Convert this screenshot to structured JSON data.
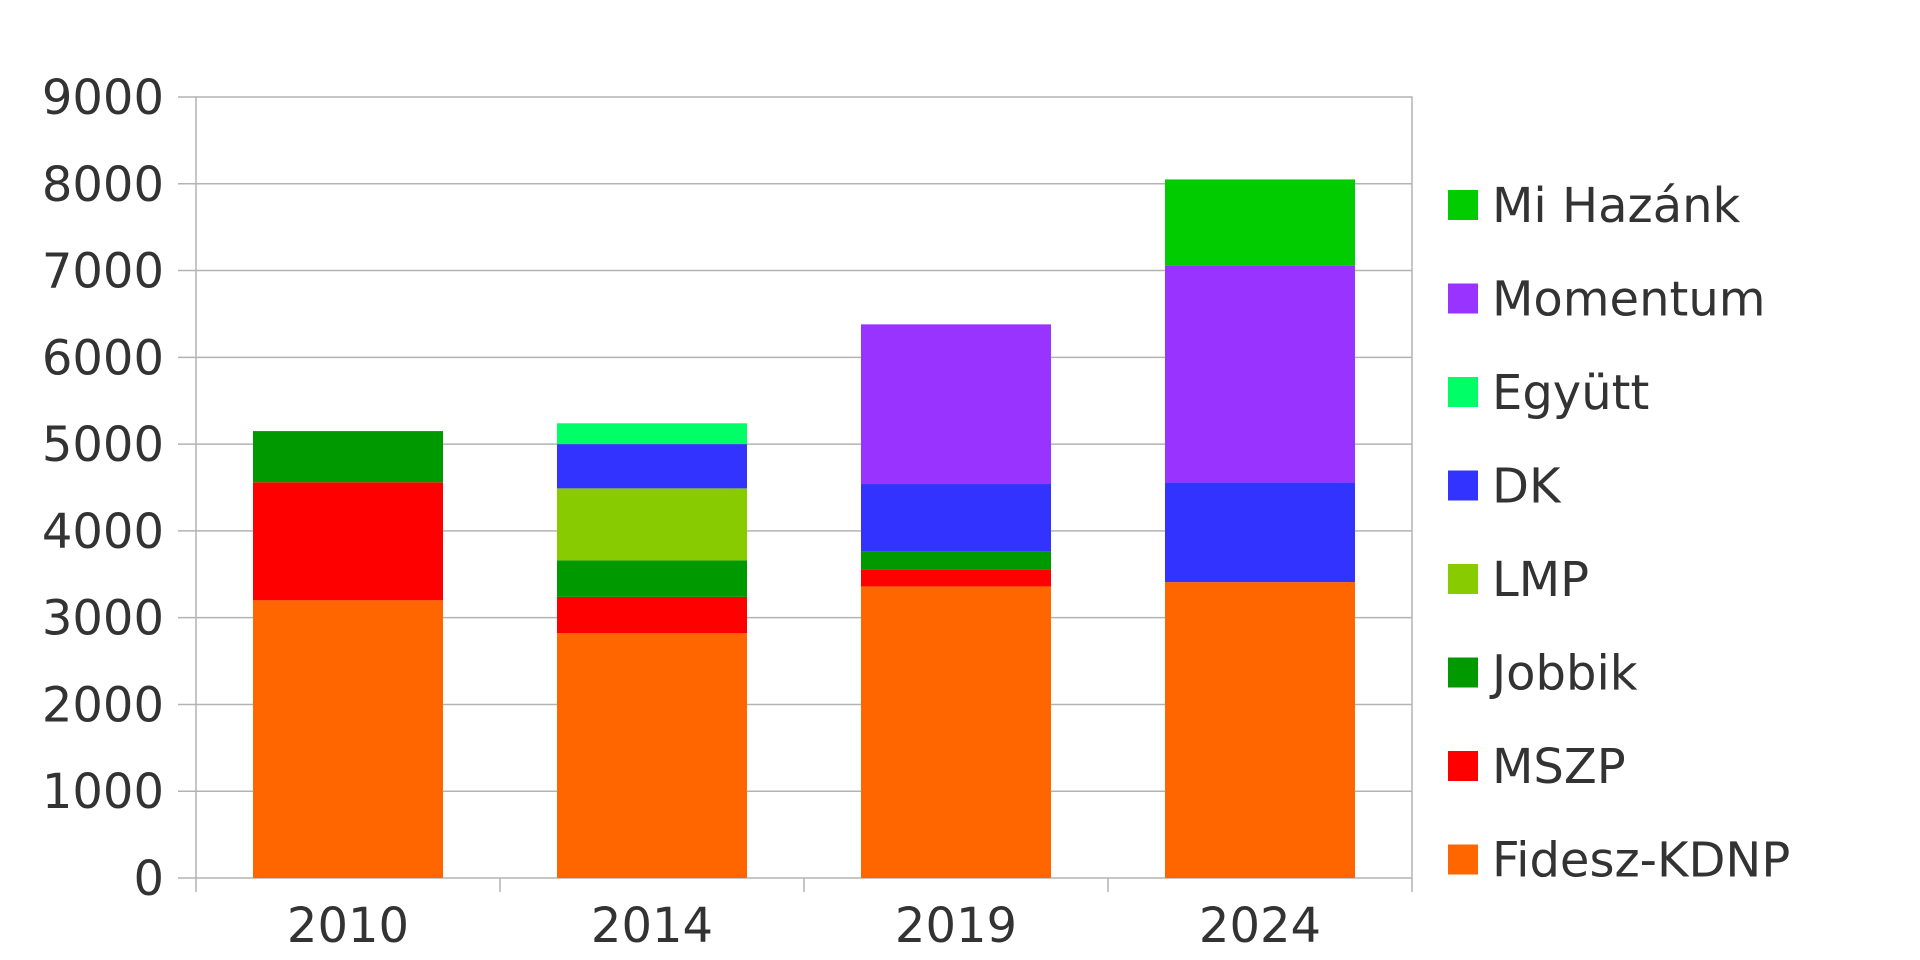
{
  "chart_data": {
    "type": "bar",
    "stacked": true,
    "categories": [
      "2010",
      "2014",
      "2019",
      "2024"
    ],
    "series": [
      {
        "name": "Fidesz-KDNP",
        "color": "#ff6600",
        "values": [
          3200,
          2820,
          3360,
          3410
        ]
      },
      {
        "name": "MSZP",
        "color": "#ff0000",
        "values": [
          1360,
          420,
          190,
          0
        ]
      },
      {
        "name": "Jobbik",
        "color": "#009900",
        "values": [
          590,
          420,
          210,
          0
        ]
      },
      {
        "name": "LMP",
        "color": "#88cc00",
        "values": [
          0,
          830,
          0,
          0
        ]
      },
      {
        "name": "DK",
        "color": "#3333ff",
        "values": [
          0,
          510,
          780,
          1150
        ]
      },
      {
        "name": "Együtt",
        "color": "#00ff66",
        "values": [
          0,
          240,
          0,
          0
        ]
      },
      {
        "name": "Momentum",
        "color": "#9933ff",
        "values": [
          0,
          0,
          1840,
          2500
        ]
      },
      {
        "name": "Mi Hazánk",
        "color": "#00cc00",
        "values": [
          0,
          0,
          0,
          990
        ]
      }
    ],
    "yticks": [
      "0",
      "1000",
      "2000",
      "3000",
      "4000",
      "5000",
      "6000",
      "7000",
      "8000",
      "9000"
    ],
    "ylim": [
      0,
      9000
    ],
    "grid": true,
    "legend": "right",
    "title": "",
    "xlabel": "",
    "ylabel": ""
  }
}
